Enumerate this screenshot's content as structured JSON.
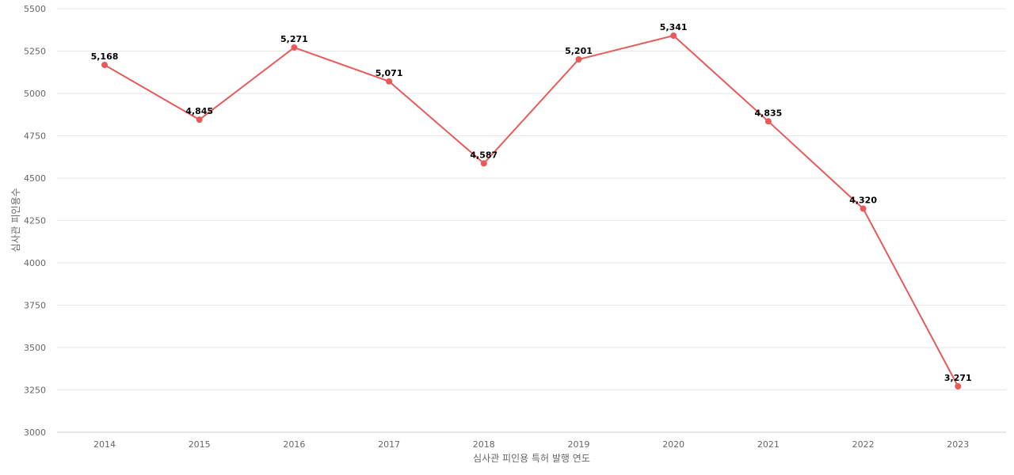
{
  "chart_data": {
    "type": "line",
    "title": "",
    "xlabel": "심사관 피인용 특허 발행 연도",
    "ylabel": "심사관 피인용수",
    "x": [
      "2014",
      "2015",
      "2016",
      "2017",
      "2018",
      "2019",
      "2020",
      "2021",
      "2022",
      "2023"
    ],
    "series": [
      {
        "values": [
          5168,
          4845,
          5271,
          5071,
          4587,
          5201,
          5341,
          4835,
          4320,
          3271
        ],
        "labels": [
          "5,168",
          "4,845",
          "5,271",
          "5,071",
          "4,587",
          "5,201",
          "5,341",
          "4,835",
          "4,320",
          "3,271"
        ],
        "color": "#e85a5a"
      }
    ],
    "ylim": [
      3000,
      5500
    ],
    "yticks": [
      3000,
      3250,
      3500,
      3750,
      4000,
      4250,
      4500,
      4750,
      5000,
      5250,
      5500
    ],
    "grid": true,
    "legend": "none"
  }
}
